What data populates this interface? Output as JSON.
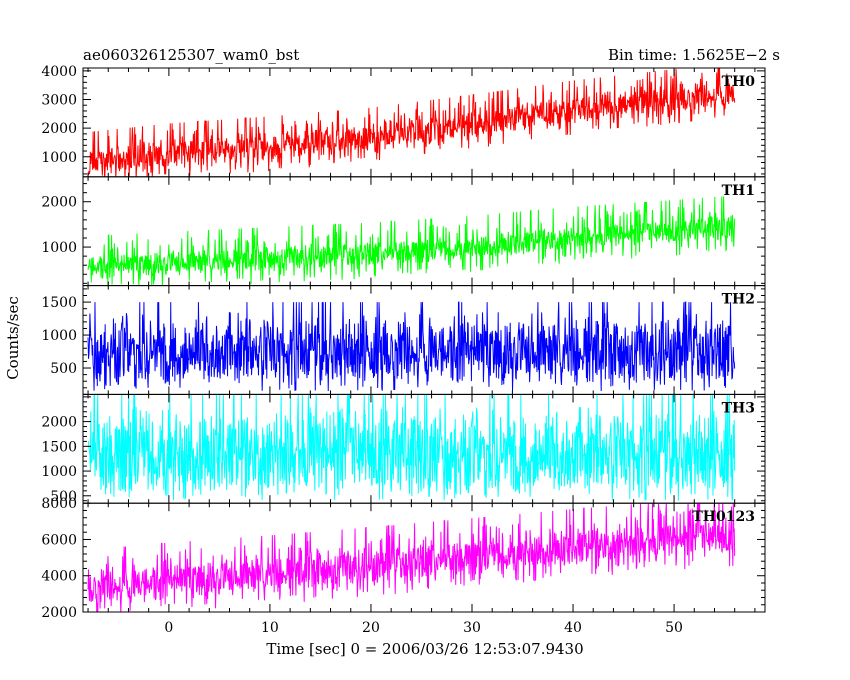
{
  "header": {
    "title": "ae060326125307_wam0_bst",
    "bin_time": "Bin time: 1.5625E−2 s"
  },
  "chart_data": {
    "type": "line",
    "stacked_panels": true,
    "xlabel": "Time [sec] 0 = 2006/03/26 12:53:07.9430",
    "ylabel": "Counts/sec",
    "xlim": [
      -8.5,
      59
    ],
    "x_range_data": [
      -8,
      56
    ],
    "x_ticks": [
      0,
      10,
      20,
      30,
      40,
      50
    ],
    "grid": false,
    "panels": [
      {
        "name": "TH0",
        "color": "#ff0000",
        "ylim": [
          300,
          4100
        ],
        "y_ticks": [
          1000,
          2000,
          3000,
          4000
        ],
        "trend": [
          [
            -8,
            800
          ],
          [
            0,
            1100
          ],
          [
            10,
            1350
          ],
          [
            20,
            1650
          ],
          [
            30,
            2100
          ],
          [
            40,
            2600
          ],
          [
            50,
            3000
          ],
          [
            56,
            3200
          ]
        ],
        "band_low": 550,
        "band_high": 850
      },
      {
        "name": "TH1",
        "color": "#00ff00",
        "ylim": [
          150,
          2550
        ],
        "y_ticks": [
          1000,
          2000
        ],
        "trend": [
          [
            -8,
            550
          ],
          [
            0,
            650
          ],
          [
            10,
            750
          ],
          [
            20,
            850
          ],
          [
            30,
            1000
          ],
          [
            40,
            1200
          ],
          [
            50,
            1350
          ],
          [
            56,
            1450
          ]
        ],
        "band_low": 300,
        "band_high": 550
      },
      {
        "name": "TH2",
        "color": "#0000ff",
        "ylim": [
          100,
          1750
        ],
        "y_ticks": [
          500,
          1000,
          1500
        ],
        "trend": [
          [
            -8,
            750
          ],
          [
            0,
            750
          ],
          [
            10,
            750
          ],
          [
            20,
            750
          ],
          [
            30,
            750
          ],
          [
            40,
            750
          ],
          [
            50,
            750
          ],
          [
            56,
            750
          ]
        ],
        "band_low": 500,
        "band_high": 600
      },
      {
        "name": "TH3",
        "color": "#00ffff",
        "ylim": [
          350,
          2550
        ],
        "y_ticks": [
          500,
          1000,
          1500,
          2000
        ],
        "trend": [
          [
            -8,
            1350
          ],
          [
            0,
            1350
          ],
          [
            10,
            1350
          ],
          [
            20,
            1350
          ],
          [
            30,
            1350
          ],
          [
            40,
            1350
          ],
          [
            50,
            1350
          ],
          [
            56,
            1350
          ]
        ],
        "band_low": 850,
        "band_high": 950
      },
      {
        "name": "TH0123",
        "color": "#ff00ff",
        "ylim": [
          2000,
          8000
        ],
        "y_ticks": [
          2000,
          4000,
          6000,
          8000
        ],
        "trend": [
          [
            -8,
            3300
          ],
          [
            0,
            3700
          ],
          [
            10,
            4100
          ],
          [
            20,
            4550
          ],
          [
            30,
            5050
          ],
          [
            40,
            5550
          ],
          [
            50,
            6000
          ],
          [
            56,
            6200
          ]
        ],
        "band_low": 1100,
        "band_high": 1700
      }
    ]
  }
}
